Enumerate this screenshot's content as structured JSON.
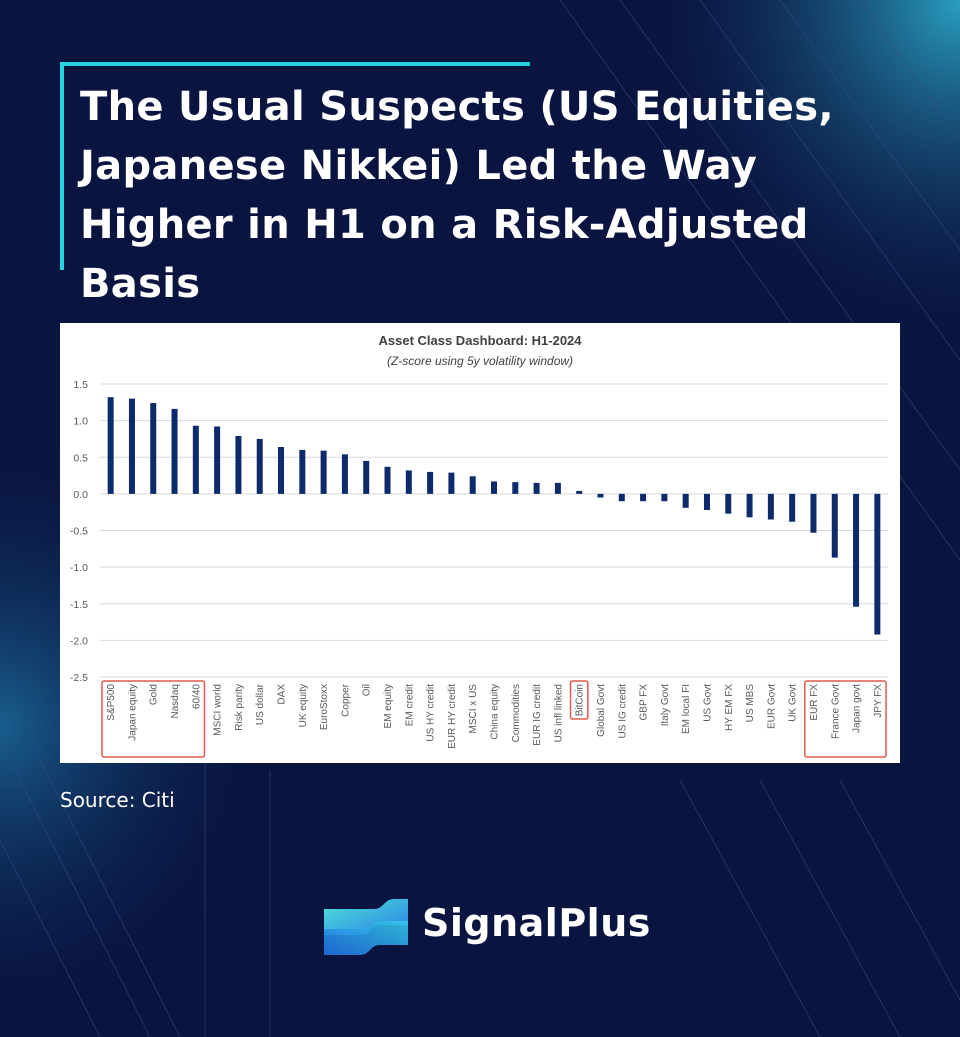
{
  "headline": "The Usual Suspects (US Equities, Japanese Nikkei) Led the Way Higher in H1 on a Risk-Adjusted Basis",
  "source": "Source: Citi",
  "brand": {
    "name": "SignalPlus",
    "icon": "signalplus-logo-icon",
    "accent": "#27d3e0"
  },
  "colors": {
    "background": "#0a1440",
    "bar": "#0d2a6b",
    "highlight_box": "#e05a4f"
  },
  "chart_data": {
    "type": "bar",
    "title": "Asset Class Dashboard: H1-2024",
    "subtitle": "(Z-score using 5y volatility window)",
    "ylim": [
      -2.5,
      1.5
    ],
    "yticks": [
      "1.5",
      "1.0",
      "0.5",
      "0.0",
      "-0.5",
      "-1.0",
      "-1.5",
      "-2.0",
      "-2.5"
    ],
    "grid": true,
    "categories": [
      "S&P500",
      "Japan equity",
      "Gold",
      "Nasdaq",
      "60/40",
      "MSCI world",
      "Risk parity",
      "US dollar",
      "DAX",
      "UK equity",
      "EuroStoxx",
      "Copper",
      "Oil",
      "EM equity",
      "EM credit",
      "US HY credit",
      "EUR HY credit",
      "MSCI x US",
      "China equity",
      "Commodities",
      "EUR IG credit",
      "US infl linked",
      "BitCoin",
      "Global Govt",
      "US IG credit",
      "GBP FX",
      "Italy Govt",
      "EM local FI",
      "US Govt",
      "HY EM FX",
      "US MBS",
      "EUR Govt",
      "UK Govt",
      "EUR FX",
      "France Govt",
      "Japan govt",
      "JPY FX"
    ],
    "values": [
      1.32,
      1.3,
      1.24,
      1.16,
      0.93,
      0.92,
      0.79,
      0.75,
      0.64,
      0.6,
      0.59,
      0.54,
      0.45,
      0.37,
      0.32,
      0.3,
      0.29,
      0.24,
      0.17,
      0.16,
      0.15,
      0.15,
      0.04,
      -0.05,
      -0.1,
      -0.1,
      -0.1,
      -0.19,
      -0.22,
      -0.27,
      -0.32,
      -0.35,
      -0.38,
      -0.53,
      -0.87,
      -1.54,
      -1.92
    ],
    "highlight_groups": [
      {
        "from": "S&P500",
        "to": "60/40"
      },
      {
        "from": "BitCoin",
        "to": "BitCoin"
      },
      {
        "from": "EUR FX",
        "to": "JPY FX"
      }
    ]
  }
}
